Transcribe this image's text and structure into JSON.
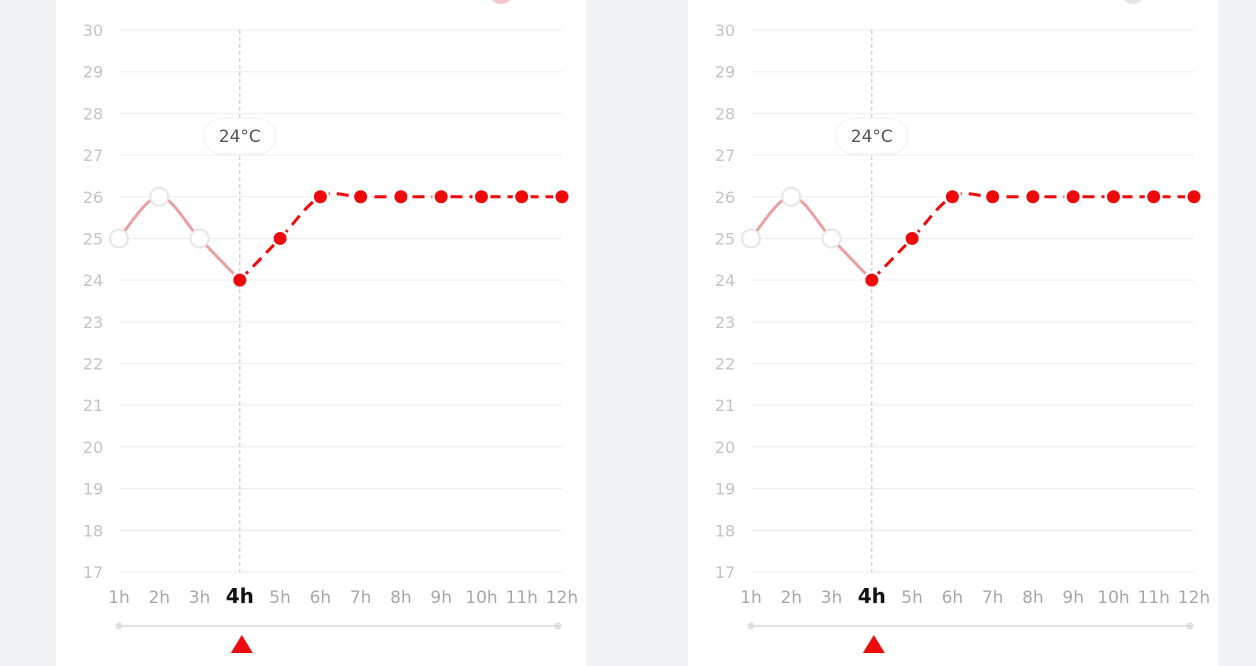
{
  "panels": [
    {
      "id": "left",
      "accent": "#ee0a0a",
      "past_color": "#e8a0a0",
      "tooltip_label": "24°C",
      "legend_dot_color": "#f5c6c6"
    },
    {
      "id": "right",
      "accent": "#ee0a0a",
      "past_color": "#e8a0a0",
      "tooltip_label": "24°C",
      "legend_dot_color": "#e6e6e6"
    }
  ],
  "chart_data": [
    {
      "type": "line",
      "categories": [
        "1h",
        "2h",
        "3h",
        "4h",
        "5h",
        "6h",
        "7h",
        "8h",
        "9h",
        "10h",
        "11h",
        "12h"
      ],
      "values": [
        25,
        26,
        25,
        24,
        25,
        26,
        26,
        26,
        26,
        26,
        26,
        26
      ],
      "selected_index": 3,
      "y_ticks": [
        30,
        29,
        28,
        27,
        26,
        25,
        24,
        23,
        22,
        21,
        20,
        19,
        18,
        17
      ],
      "ylim": [
        17,
        30
      ],
      "grid": true
    },
    {
      "type": "line",
      "categories": [
        "1h",
        "2h",
        "3h",
        "4h",
        "5h",
        "6h",
        "7h",
        "8h",
        "9h",
        "10h",
        "11h",
        "12h"
      ],
      "values": [
        25,
        26,
        25,
        24,
        25,
        26,
        26,
        26,
        26,
        26,
        26,
        26
      ],
      "selected_index": 3,
      "y_ticks": [
        30,
        29,
        28,
        27,
        26,
        25,
        24,
        23,
        22,
        21,
        20,
        19,
        18,
        17
      ],
      "ylim": [
        17,
        30
      ],
      "grid": true
    }
  ]
}
